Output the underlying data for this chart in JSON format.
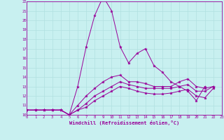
{
  "xlabel": "Windchill (Refroidissement éolien,°C)",
  "bg_color": "#c8f0f0",
  "grid_color": "#b0e0e0",
  "line_color": "#990099",
  "xmin": 0,
  "xmax": 23,
  "ymin": 10,
  "ymax": 22,
  "lines": [
    {
      "x": [
        0,
        1,
        2,
        3,
        4,
        5,
        6,
        7,
        8,
        9,
        10,
        11,
        12,
        13,
        14,
        15,
        16,
        17,
        18,
        19,
        20,
        21
      ],
      "y": [
        10.5,
        10.5,
        10.5,
        10.5,
        10.5,
        10.0,
        13.0,
        17.2,
        20.5,
        22.5,
        21.0,
        17.2,
        15.5,
        16.5,
        17.0,
        15.2,
        14.5,
        13.5,
        13.0,
        12.5,
        11.5,
        13.0
      ]
    },
    {
      "x": [
        0,
        1,
        2,
        3,
        4,
        5,
        6,
        7,
        8,
        9,
        10,
        11,
        12,
        13,
        14,
        15,
        16,
        17,
        18,
        19,
        20,
        21,
        22
      ],
      "y": [
        10.5,
        10.5,
        10.5,
        10.5,
        10.5,
        10.0,
        11.0,
        12.0,
        12.8,
        13.5,
        14.0,
        14.2,
        13.5,
        13.5,
        13.3,
        13.0,
        13.0,
        13.0,
        13.5,
        13.8,
        13.0,
        12.8,
        13.0
      ]
    },
    {
      "x": [
        0,
        1,
        2,
        3,
        4,
        5,
        6,
        7,
        8,
        9,
        10,
        11,
        12,
        13,
        14,
        15,
        16,
        17,
        18,
        19,
        20,
        21,
        22
      ],
      "y": [
        10.5,
        10.5,
        10.5,
        10.5,
        10.5,
        10.0,
        10.5,
        11.2,
        12.0,
        12.5,
        13.0,
        13.5,
        13.2,
        13.0,
        12.8,
        12.8,
        12.8,
        12.8,
        13.0,
        13.2,
        12.5,
        12.5,
        13.0
      ]
    },
    {
      "x": [
        0,
        1,
        2,
        3,
        4,
        5,
        6,
        7,
        8,
        9,
        10,
        11,
        12,
        13,
        14,
        15,
        16,
        17,
        18,
        19,
        20,
        21,
        22
      ],
      "y": [
        10.5,
        10.5,
        10.5,
        10.5,
        10.5,
        10.0,
        10.5,
        10.8,
        11.5,
        12.0,
        12.5,
        13.0,
        12.8,
        12.5,
        12.3,
        12.2,
        12.2,
        12.3,
        12.5,
        12.7,
        12.0,
        11.8,
        12.8
      ]
    }
  ]
}
